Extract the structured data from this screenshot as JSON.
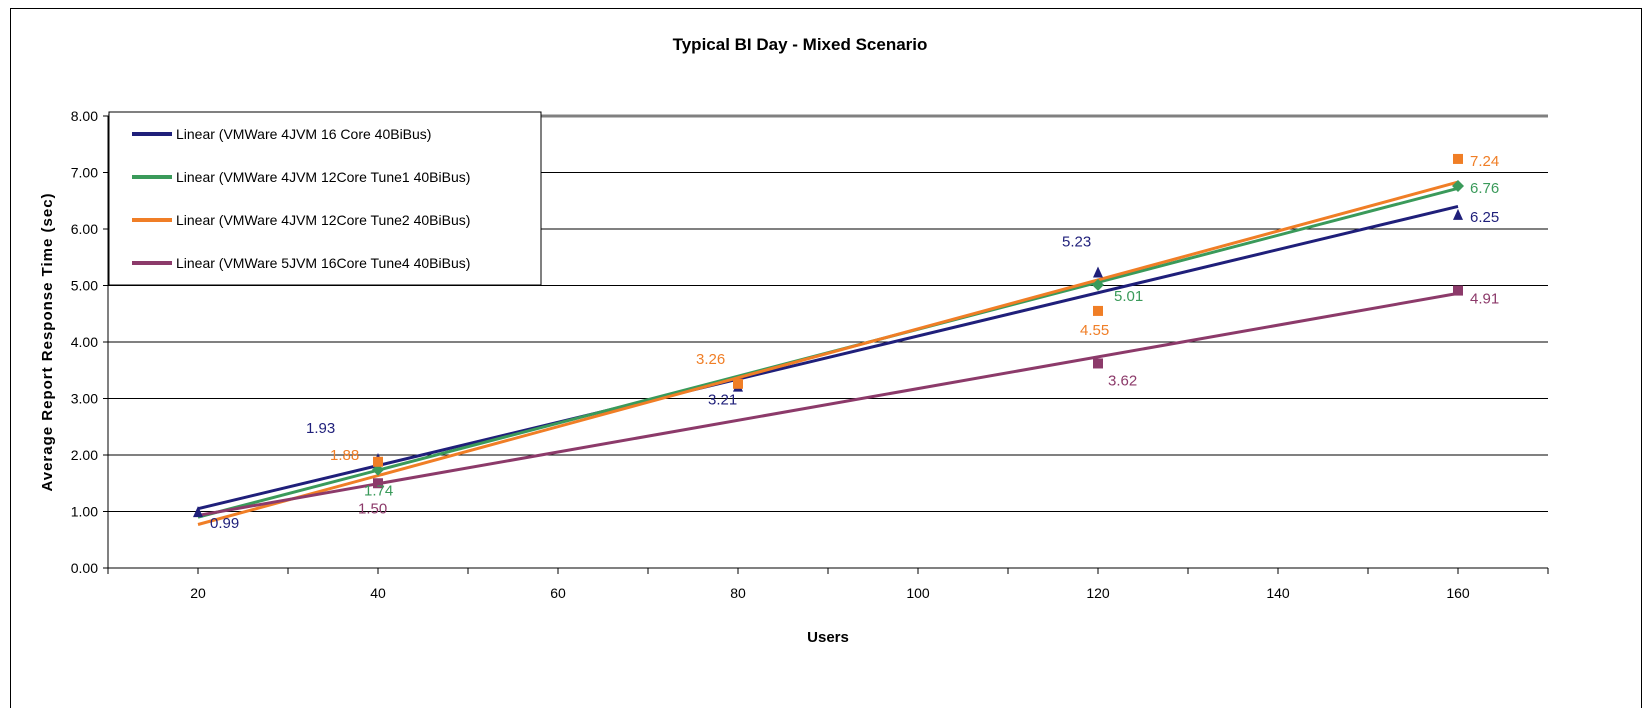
{
  "chart_data": {
    "type": "line",
    "title": "Typical BI Day - Mixed Scenario",
    "xlabel": "Users",
    "ylabel": "Average Report Response Time (sec)",
    "xlim": [
      10,
      170
    ],
    "ylim": [
      0,
      8
    ],
    "x_ticks": [
      20,
      40,
      60,
      80,
      100,
      120,
      140,
      160
    ],
    "x_tick_labels": [
      "20",
      "40",
      "60",
      "80",
      "100",
      "120",
      "140",
      "160"
    ],
    "y_ticks": [
      0,
      1,
      2,
      3,
      4,
      5,
      6,
      7,
      8
    ],
    "y_tick_labels": [
      "0.00",
      "1.00",
      "2.00",
      "3.00",
      "4.00",
      "5.00",
      "6.00",
      "7.00",
      "8.00"
    ],
    "grid": "horizontal",
    "legend_position": "top-left",
    "series": [
      {
        "legend": "Linear (VMWare 4JVM 16 Core 40BiBus)",
        "color": "#1f1f7a",
        "marker": "triangle",
        "x": [
          20,
          40,
          80,
          120,
          160
        ],
        "y": [
          0.99,
          1.93,
          3.21,
          5.23,
          6.25
        ],
        "labels": [
          "0.99",
          "1.93",
          "3.21",
          "5.23",
          "6.25"
        ],
        "trend": [
          [
            20,
            1.05
          ],
          [
            160,
            6.4
          ]
        ]
      },
      {
        "legend": "Linear (VMWare 4JVM 12Core Tune1 40BiBus)",
        "color": "#3a9a5a",
        "marker": "diamond",
        "x": [
          40,
          120,
          160
        ],
        "y": [
          1.74,
          5.01,
          6.76
        ],
        "labels": [
          "1.74",
          "5.01",
          "6.76"
        ],
        "trend": [
          [
            20,
            0.9
          ],
          [
            160,
            6.72
          ]
        ]
      },
      {
        "legend": "Linear (VMWare 4JVM 12Core Tune2 40BiBus)",
        "color": "#f07e26",
        "marker": "square",
        "x": [
          40,
          80,
          120,
          160
        ],
        "y": [
          1.88,
          3.26,
          4.55,
          7.24
        ],
        "labels": [
          "1.88",
          "3.26",
          "4.55",
          "7.24"
        ],
        "trend": [
          [
            20,
            0.77
          ],
          [
            160,
            6.83
          ]
        ]
      },
      {
        "legend": "Linear (VMWare 5JVM 16Core Tune4 40BiBus)",
        "color": "#8c3a6a",
        "marker": "square",
        "x": [
          40,
          120,
          160
        ],
        "y": [
          1.5,
          3.62,
          4.91
        ],
        "labels": [
          "1.50",
          "3.62",
          "4.91"
        ],
        "trend": [
          [
            20,
            0.93
          ],
          [
            160,
            4.86
          ]
        ]
      }
    ]
  }
}
